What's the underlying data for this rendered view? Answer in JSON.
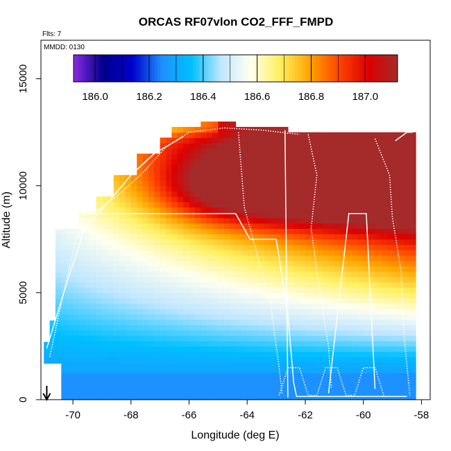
{
  "chart_data": {
    "type": "heatmap",
    "title": "ORCAS RF07vlon CO2_FFF_FMPD",
    "subtitle_flights": "Flts: 7",
    "subtitle_date": "MMDD: 0130",
    "xlabel": "Longitude (deg E)",
    "ylabel": "Altitude (m)",
    "xlim": [
      -71.1,
      -57.7
    ],
    "ylim": [
      0,
      16800
    ],
    "xticks": [
      -70,
      -68,
      -66,
      -64,
      -62,
      -60,
      -58
    ],
    "xtick_labels": [
      "-70",
      "-68",
      "-66",
      "-64",
      "-62",
      "-60",
      "-58"
    ],
    "yticks": [
      0,
      5000,
      10000,
      15000
    ],
    "ytick_labels": [
      "0",
      "5000",
      "10000",
      "15000"
    ],
    "colorbar": {
      "range": [
        185.92,
        187.12
      ],
      "ticks": [
        186.0,
        186.2,
        186.4,
        186.6,
        186.8,
        187.0
      ],
      "tick_labels": [
        "186.0",
        "186.2",
        "186.4",
        "186.6",
        "186.8",
        "187.0"
      ],
      "colors": [
        "#8a2be2",
        "#00008b",
        "#0000cd",
        "#1e90ff",
        "#00bfff",
        "#bfe6ff",
        "#fffff0",
        "#fff060",
        "#ffa500",
        "#ff4500",
        "#dd0000",
        "#a52a2a"
      ]
    },
    "grid": false,
    "field_description": "CO2 anomaly curtain: low values (~186.3) near surface rising to ~187.1 at 9500-10500 m east of -64",
    "arrow_marker_longitude": -70.9,
    "flight_track_description": "white dotted/solid profile lines of aircraft track"
  }
}
